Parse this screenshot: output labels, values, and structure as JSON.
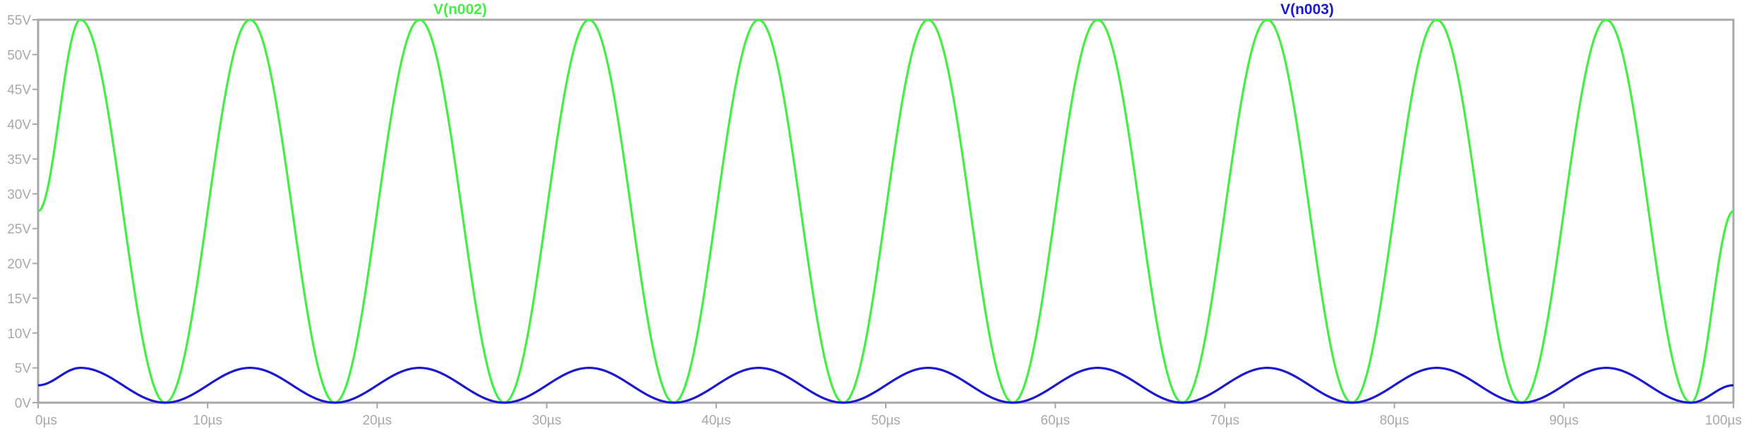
{
  "chart_data": {
    "type": "line",
    "title": "",
    "xlabel": "",
    "ylabel": "",
    "xlim": [
      0,
      100
    ],
    "ylim": [
      0,
      55
    ],
    "x_unit": "µs",
    "y_unit": "V",
    "x_ticks": [
      0,
      10,
      20,
      30,
      40,
      50,
      60,
      70,
      80,
      90,
      100
    ],
    "y_ticks": [
      0,
      5,
      10,
      15,
      20,
      25,
      30,
      35,
      40,
      45,
      50,
      55
    ],
    "x_tick_labels": [
      "0µs",
      "10µs",
      "20µs",
      "30µs",
      "40µs",
      "50µs",
      "60µs",
      "70µs",
      "80µs",
      "90µs",
      "100µs"
    ],
    "y_tick_labels": [
      "0V",
      "5V",
      "10V",
      "15V",
      "20V",
      "25V",
      "30V",
      "35V",
      "40V",
      "45V",
      "50V",
      "55V"
    ],
    "grid": false,
    "legend": "top",
    "series": [
      {
        "name": "V(n002)",
        "color": "#44ee44",
        "x": [
          0,
          2.5,
          7.5,
          12.5,
          17.5,
          22.5,
          27.5,
          32.5,
          37.5,
          42.5,
          47.5,
          52.5,
          57.5,
          62.5,
          67.5,
          72.5,
          77.5,
          82.5,
          87.5,
          92.5,
          97.5,
          100
        ],
        "values": [
          27.5,
          55,
          0,
          55,
          0,
          55,
          0,
          55,
          0,
          55,
          0,
          55,
          0,
          55,
          0,
          55,
          0,
          55,
          0,
          55,
          0,
          27.5
        ]
      },
      {
        "name": "V(n003)",
        "color": "#1a1acc",
        "x": [
          0,
          2.5,
          7.5,
          12.5,
          17.5,
          22.5,
          27.5,
          32.5,
          37.5,
          42.5,
          47.5,
          52.5,
          57.5,
          62.5,
          67.5,
          72.5,
          77.5,
          82.5,
          87.5,
          92.5,
          97.5,
          100
        ],
        "values": [
          2.5,
          5,
          0,
          5,
          0,
          5,
          0,
          5,
          0,
          5,
          0,
          5,
          0,
          5,
          0,
          5,
          0,
          5,
          0,
          5,
          0,
          2.5
        ]
      }
    ]
  },
  "colors": {
    "frame": "#a8a8a8",
    "background": "#ffffff"
  }
}
